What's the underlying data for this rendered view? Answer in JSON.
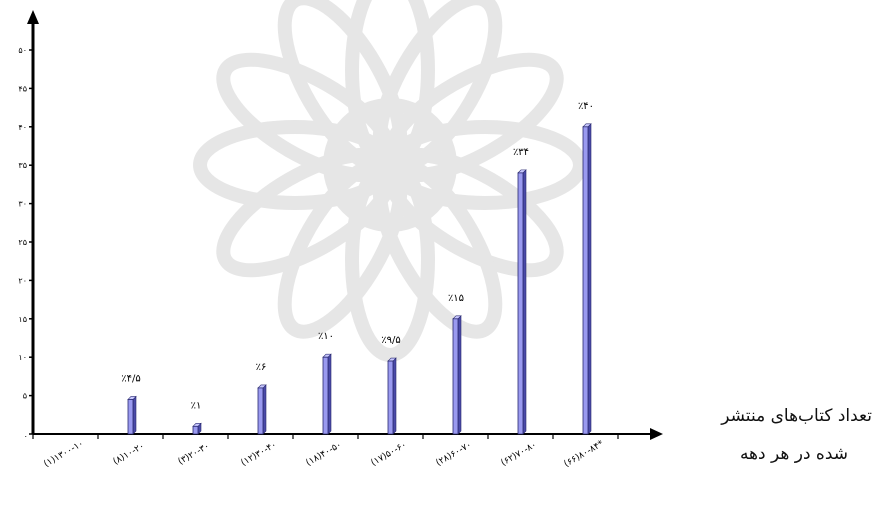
{
  "chart_data": {
    "type": "bar",
    "title": "",
    "ylabel": "",
    "xlabel_lines": [
      "تعداد کتاب‌های منتشر",
      "شده در هر دهه"
    ],
    "ylim": [
      0,
      50
    ],
    "yticks": [
      {
        "value": 0,
        "label": "."
      },
      {
        "value": 5,
        "label": "۵"
      },
      {
        "value": 10,
        "label": "۱۰"
      },
      {
        "value": 15,
        "label": "۱۵"
      },
      {
        "value": 20,
        "label": "۲۰"
      },
      {
        "value": 25,
        "label": "۲۵"
      },
      {
        "value": 30,
        "label": "۳۰"
      },
      {
        "value": 35,
        "label": "۳۵"
      },
      {
        "value": 40,
        "label": "۴۰"
      },
      {
        "value": 45,
        "label": "۴۵"
      },
      {
        "value": 50,
        "label": "۵۰"
      }
    ],
    "categories": [
      "(۱)۱۳۰۰-۱۰",
      "(۸)۱۰-۲۰",
      "(۳)۲۰-۳۰",
      "(۱۲)۳۰-۴۰",
      "(۱۸)۴۰-۵۰",
      "(۱۷)۵۰-۶۰",
      "(۲۸)۶۰-۷۰",
      "(۶۲)۷۰-۸۰",
      "(۶۶)۸۰-۸۴*"
    ],
    "values": [
      null,
      4.5,
      1,
      6,
      10,
      9.5,
      15,
      34,
      40
    ],
    "data_labels": [
      "",
      "٪۴/۵",
      "٪۱",
      "٪۶",
      "٪۱۰",
      "٪۹/۵",
      "٪۱۵",
      "٪۳۴",
      "٪۴۰"
    ],
    "bar_color": "#9a9af0",
    "bar_edge_color": "#2a2a70",
    "grid": false,
    "legend": "none"
  }
}
